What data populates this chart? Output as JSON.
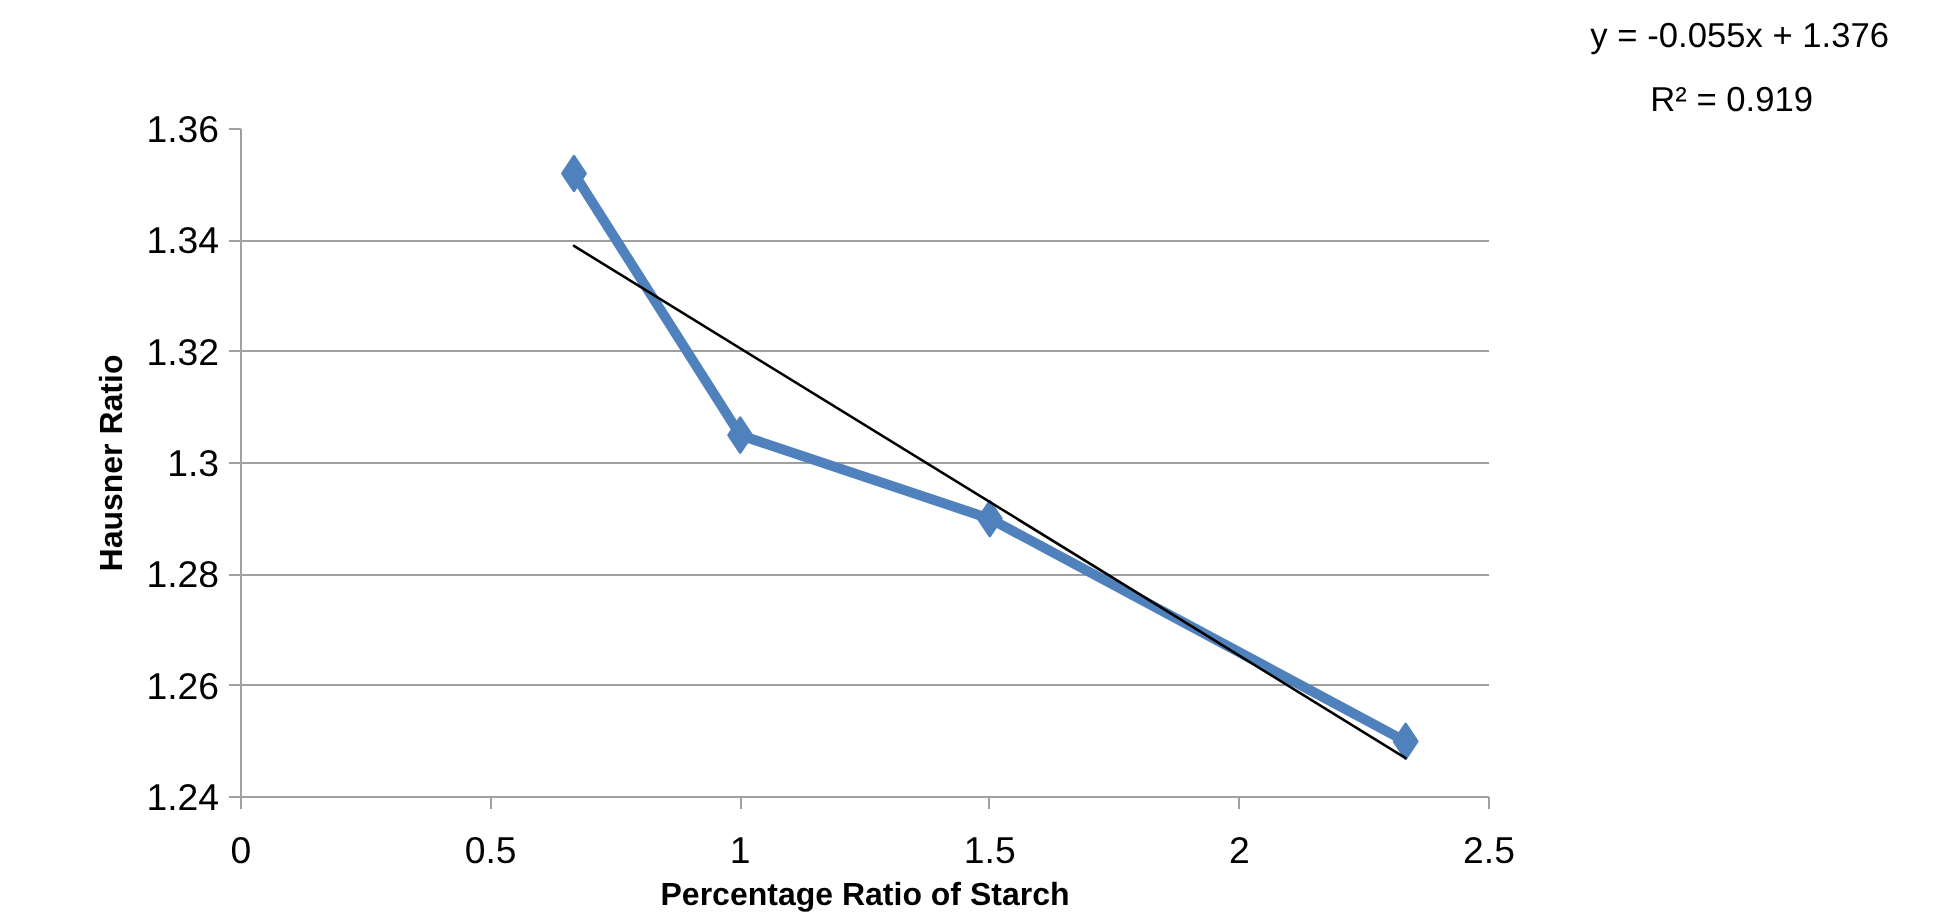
{
  "chart_data": {
    "type": "line",
    "xlabel": "Percentage Ratio of Starch",
    "ylabel": "Hausner Ratio",
    "x": [
      0.667,
      1.0,
      1.5,
      2.333
    ],
    "series": [
      {
        "color": "#4f81bd",
        "values": [
          1.352,
          1.305,
          1.29,
          1.25
        ],
        "marker": "diamond"
      },
      {
        "type": "line",
        "color": "#000000",
        "x": [
          0.667,
          2.333
        ],
        "values": [
          1.339,
          1.247
        ],
        "marker": "none"
      }
    ],
    "xlim": [
      0,
      2.5
    ],
    "xticks": [
      0,
      0.5,
      1,
      1.5,
      2,
      2.5
    ],
    "ylim": [
      1.24,
      1.36
    ],
    "yticks": [
      1.24,
      1.26,
      1.28,
      1.3,
      1.32,
      1.34,
      1.36
    ],
    "grid": "y",
    "annotations": [
      "y = -0.055x + 1.376",
      "R² = 0.919"
    ]
  }
}
